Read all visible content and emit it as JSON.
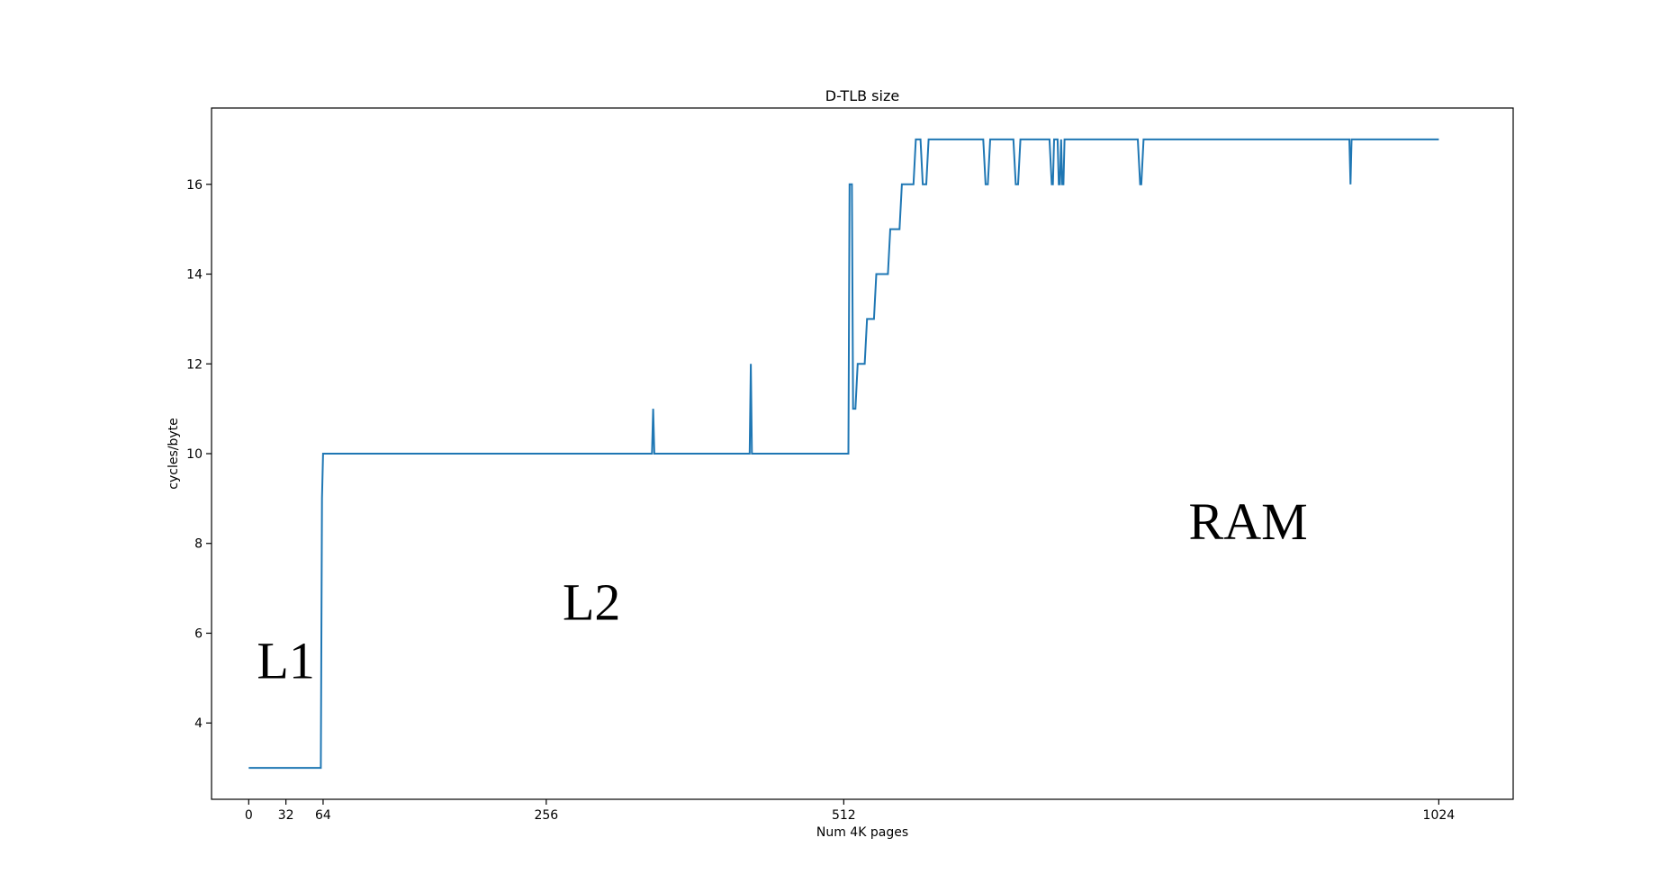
{
  "chart_data": {
    "type": "line",
    "title": "D-TLB size",
    "xlabel": "Num 4K pages",
    "ylabel": "cycles/byte",
    "xlim": [
      -32,
      1088
    ],
    "ylim": [
      2.3,
      17.7
    ],
    "xticks": [
      0,
      32,
      64,
      256,
      512,
      1024
    ],
    "yticks": [
      4,
      6,
      8,
      10,
      12,
      14,
      16
    ],
    "grid": false,
    "line_color": "#1f77b4",
    "annotations": [
      {
        "text": "L1",
        "x": 32,
        "y": 5.0
      },
      {
        "text": "L2",
        "x": 295,
        "y": 6.3
      },
      {
        "text": "RAM",
        "x": 860,
        "y": 8.1
      }
    ],
    "series": [
      {
        "points": [
          [
            0,
            3
          ],
          [
            62,
            3
          ],
          [
            63,
            9
          ],
          [
            64,
            10
          ],
          [
            347,
            10
          ],
          [
            348,
            11
          ],
          [
            349,
            10
          ],
          [
            431,
            10
          ],
          [
            432,
            12
          ],
          [
            433,
            10
          ],
          [
            516,
            10
          ],
          [
            517,
            16
          ],
          [
            519,
            16
          ],
          [
            520,
            11
          ],
          [
            522,
            11
          ],
          [
            524,
            12
          ],
          [
            530,
            12
          ],
          [
            532,
            13
          ],
          [
            538,
            13
          ],
          [
            540,
            14
          ],
          [
            550,
            14
          ],
          [
            552,
            15
          ],
          [
            560,
            15
          ],
          [
            562,
            16
          ],
          [
            572,
            16
          ],
          [
            574,
            17
          ],
          [
            578,
            17
          ],
          [
            580,
            16
          ],
          [
            583,
            16
          ],
          [
            585,
            17
          ],
          [
            632,
            17
          ],
          [
            634,
            16
          ],
          [
            636,
            16
          ],
          [
            638,
            17
          ],
          [
            658,
            17
          ],
          [
            660,
            16
          ],
          [
            662,
            16
          ],
          [
            664,
            17
          ],
          [
            689,
            17
          ],
          [
            691,
            16
          ],
          [
            692,
            16
          ],
          [
            693,
            17
          ],
          [
            696,
            17
          ],
          [
            697,
            16
          ],
          [
            698,
            16
          ],
          [
            699,
            17
          ],
          [
            700,
            16
          ],
          [
            701,
            16
          ],
          [
            702,
            17
          ],
          [
            765,
            17
          ],
          [
            767,
            16
          ],
          [
            768,
            16
          ],
          [
            770,
            17
          ],
          [
            947,
            17
          ],
          [
            948,
            16
          ],
          [
            949,
            17
          ],
          [
            1024,
            17
          ]
        ]
      }
    ]
  }
}
